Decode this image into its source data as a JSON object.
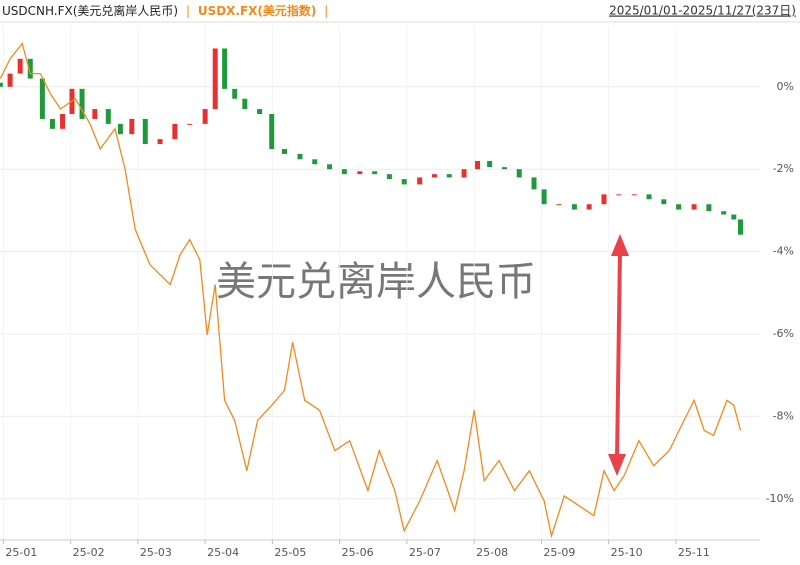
{
  "chart_data": {
    "type": "candlestick",
    "legend_separator": "|",
    "range_label": "2025/01/01-2025/11/27(237日)",
    "watermark": "美元兑离岸人民币",
    "xlim": [
      0.95,
      12.25
    ],
    "xticks": [
      {
        "value": 1,
        "label": "25-01"
      },
      {
        "value": 2,
        "label": "25-02"
      },
      {
        "value": 3,
        "label": "25-03"
      },
      {
        "value": 4,
        "label": "25-04"
      },
      {
        "value": 5,
        "label": "25-05"
      },
      {
        "value": 6,
        "label": "25-06"
      },
      {
        "value": 7,
        "label": "25-07"
      },
      {
        "value": 8,
        "label": "25-08"
      },
      {
        "value": 9,
        "label": "25-09"
      },
      {
        "value": 10,
        "label": "25-10"
      },
      {
        "value": 11,
        "label": "25-11"
      }
    ],
    "ylim": [
      -11,
      1.5
    ],
    "yticks": [
      {
        "value": 0,
        "label": "0%"
      },
      {
        "value": -2,
        "label": "-2%"
      },
      {
        "value": -4,
        "label": "-4%"
      },
      {
        "value": -6,
        "label": "-6%"
      },
      {
        "value": -8,
        "label": "-8%"
      },
      {
        "value": -10,
        "label": "-10%"
      }
    ],
    "grid": true,
    "series": [
      {
        "name": "USDCNH.FX(美元兑离岸人民币)",
        "type": "candlestick",
        "color": "#222222",
        "up_color": "#e8312f",
        "down_color": "#1f9a3a",
        "x": [
          0.955,
          1.1,
          1.25,
          1.4,
          1.58,
          1.73,
          1.88,
          2.02,
          2.17,
          2.36,
          2.56,
          2.74,
          2.91,
          3.11,
          3.33,
          3.55,
          3.77,
          4.0,
          4.15,
          4.29,
          4.44,
          4.59,
          4.81,
          4.99,
          5.18,
          5.41,
          5.63,
          5.85,
          6.07,
          6.3,
          6.52,
          6.74,
          6.96,
          7.19,
          7.41,
          7.63,
          7.85,
          8.05,
          8.23,
          8.45,
          8.67,
          8.89,
          9.04,
          9.26,
          9.49,
          9.71,
          9.93,
          10.15,
          10.38,
          10.6,
          10.82,
          11.04,
          11.27,
          11.49,
          11.71,
          11.86,
          11.96
        ],
        "open": [
          0.1,
          0,
          0.32,
          0.68,
          0.2,
          -0.78,
          -1.02,
          -0.66,
          -0.05,
          -0.78,
          -0.54,
          -0.9,
          -1.15,
          -0.78,
          -1.39,
          -1.27,
          -0.9,
          -0.9,
          -0.54,
          0.93,
          -0.05,
          -0.29,
          -0.54,
          -0.66,
          -1.51,
          -1.63,
          -1.76,
          -1.88,
          -2.0,
          -2.12,
          -2.05,
          -2.12,
          -2.24,
          -2.37,
          -2.2,
          -2.12,
          -2.2,
          -2.0,
          -1.8,
          -1.95,
          -2.0,
          -2.2,
          -2.49,
          -2.85,
          -2.85,
          -2.98,
          -2.85,
          -2.61,
          -2.61,
          -2.61,
          -2.73,
          -2.85,
          -2.98,
          -2.85,
          -3.02,
          -3.1,
          -3.22
        ],
        "values": [
          0,
          0.32,
          0.68,
          0.2,
          -0.78,
          -1.02,
          -0.66,
          -0.05,
          -0.78,
          -0.54,
          -0.9,
          -1.15,
          -0.78,
          -1.39,
          -1.27,
          -0.9,
          -0.9,
          -0.54,
          0.93,
          -0.05,
          -0.29,
          -0.54,
          -0.66,
          -1.51,
          -1.63,
          -1.76,
          -1.88,
          -2.0,
          -2.12,
          -2.05,
          -2.12,
          -2.24,
          -2.37,
          -2.2,
          -2.12,
          -2.2,
          -2.0,
          -1.8,
          -1.95,
          -2.0,
          -2.2,
          -2.49,
          -2.85,
          -2.85,
          -2.98,
          -2.85,
          -2.61,
          -2.61,
          -2.61,
          -2.73,
          -2.85,
          -2.98,
          -2.85,
          -3.02,
          -3.1,
          -3.22,
          -3.59
        ]
      },
      {
        "name": "USDX.FX(美元指数)",
        "type": "line",
        "color": "#f08a1c",
        "x": [
          0.955,
          1.1,
          1.28,
          1.4,
          1.55,
          1.7,
          1.85,
          2.07,
          2.29,
          2.44,
          2.66,
          2.81,
          2.96,
          3.18,
          3.33,
          3.48,
          3.63,
          3.77,
          3.92,
          4.03,
          4.15,
          4.29,
          4.44,
          4.62,
          4.78,
          4.99,
          5.18,
          5.3,
          5.48,
          5.7,
          5.93,
          6.15,
          6.42,
          6.59,
          6.82,
          6.96,
          7.19,
          7.45,
          7.71,
          7.85,
          8.0,
          8.15,
          8.37,
          8.6,
          8.82,
          9.04,
          9.15,
          9.34,
          9.56,
          9.78,
          9.93,
          10.08,
          10.23,
          10.45,
          10.67,
          10.9,
          11.12,
          11.27,
          11.42,
          11.56,
          11.76,
          11.86,
          11.96
        ],
        "values": [
          0.2,
          0.68,
          1.05,
          0.32,
          0.32,
          -0.17,
          -0.54,
          -0.29,
          -0.9,
          -1.51,
          -1.02,
          -2.0,
          -3.46,
          -4.32,
          -4.56,
          -4.8,
          -4.07,
          -3.71,
          -4.2,
          -6.02,
          -4.8,
          -7.61,
          -8.1,
          -9.32,
          -8.1,
          -7.73,
          -7.37,
          -6.2,
          -7.61,
          -7.85,
          -8.83,
          -8.59,
          -9.8,
          -8.83,
          -9.8,
          -10.78,
          -10.05,
          -9.07,
          -10.29,
          -9.32,
          -7.85,
          -9.56,
          -9.07,
          -9.8,
          -9.32,
          -10.05,
          -10.9,
          -9.93,
          -10.17,
          -10.41,
          -9.32,
          -9.8,
          -9.44,
          -8.59,
          -9.2,
          -8.83,
          -8.1,
          -7.61,
          -8.34,
          -8.46,
          -7.61,
          -7.73,
          -8.34
        ]
      }
    ]
  }
}
